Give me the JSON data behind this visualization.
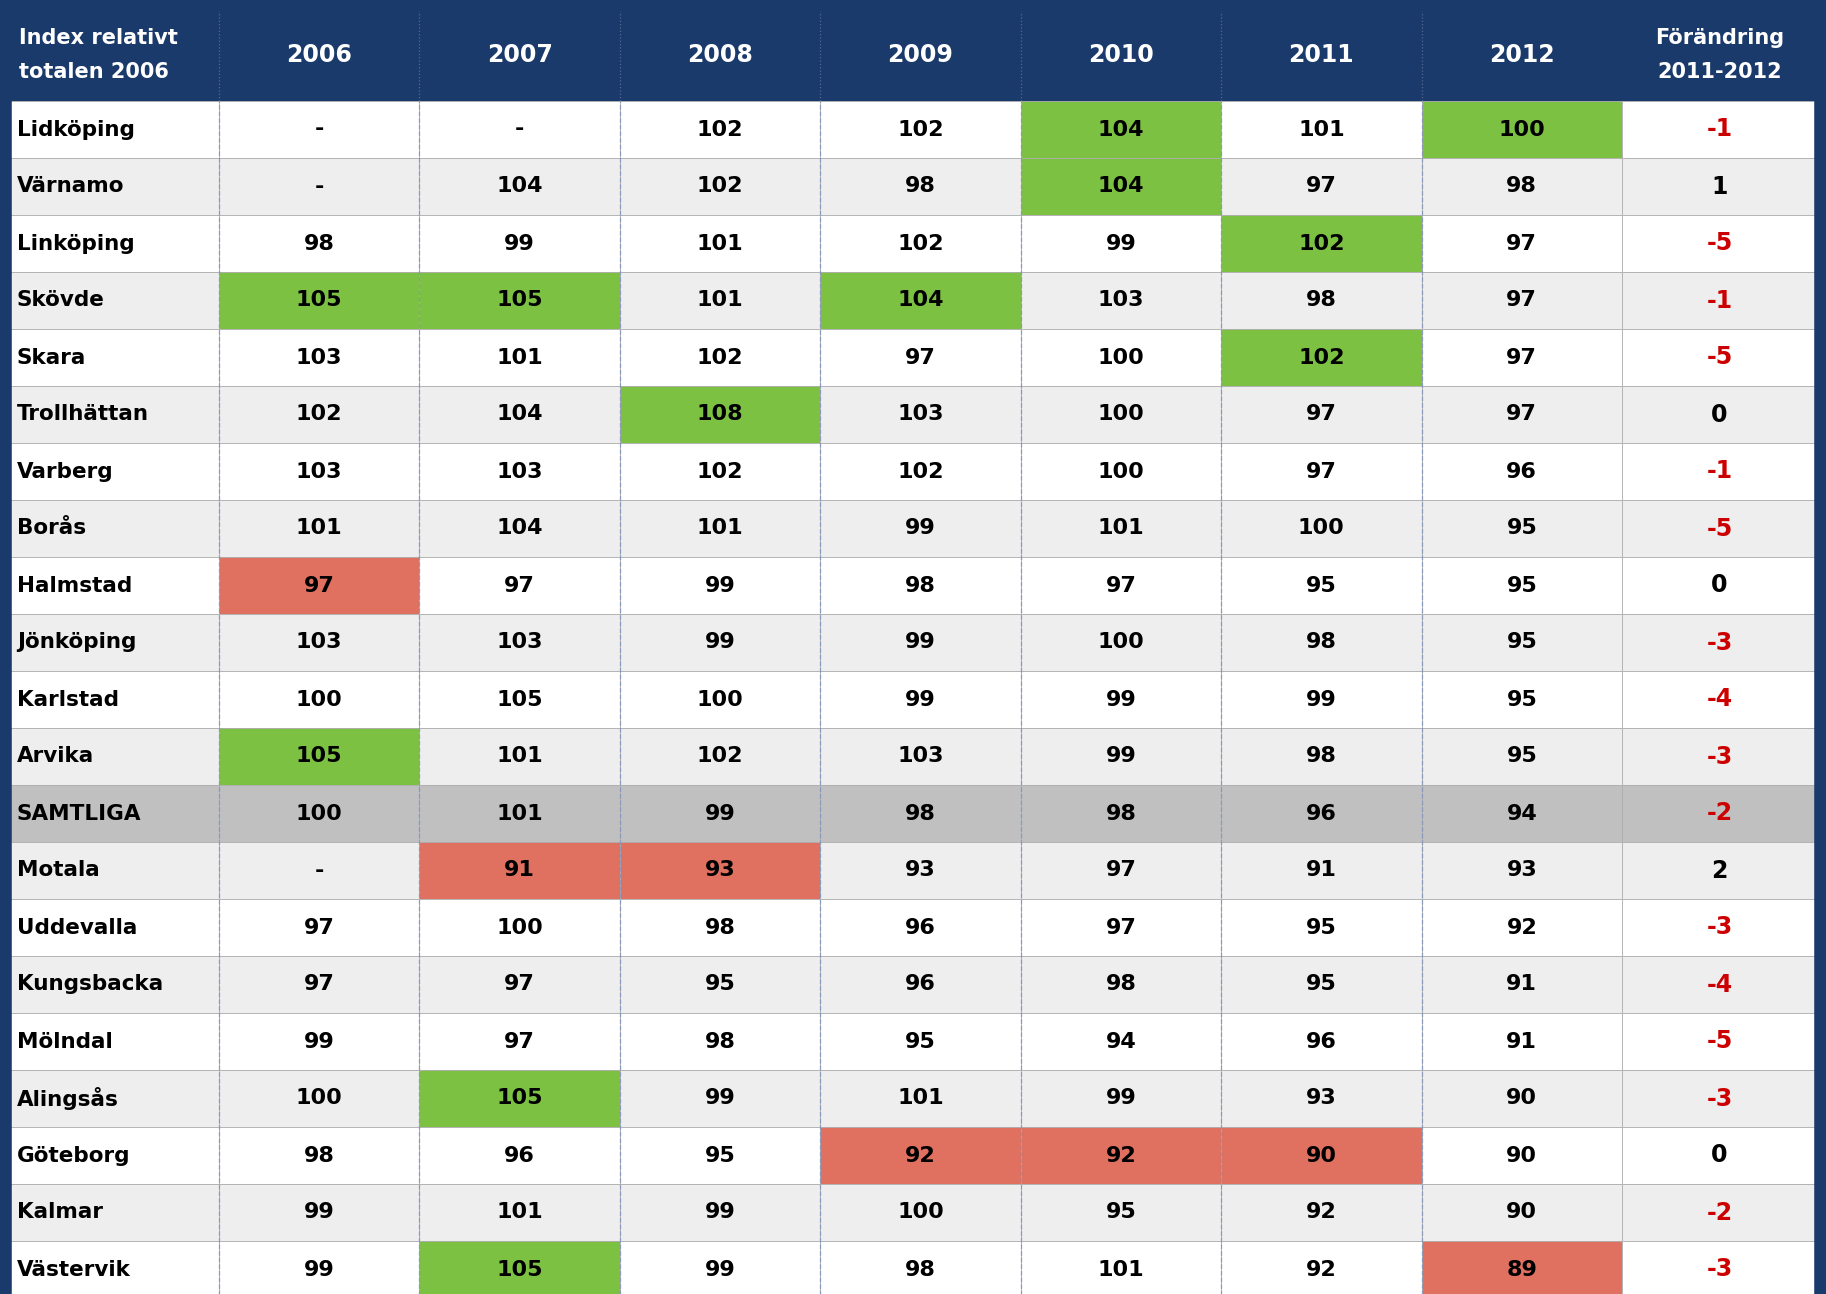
{
  "header_bg": "#1a3a6b",
  "header_text": "#ffffff",
  "year_cols": [
    "2006",
    "2007",
    "2008",
    "2009",
    "2010",
    "2011",
    "2012"
  ],
  "rows": [
    {
      "city": "Lidköping",
      "vals": [
        "-",
        "-",
        "102",
        "102",
        "104",
        "101",
        "100"
      ],
      "change": "-1",
      "change_color": "red"
    },
    {
      "city": "Värnamo",
      "vals": [
        "-",
        "104",
        "102",
        "98",
        "104",
        "97",
        "98"
      ],
      "change": "1",
      "change_color": "black"
    },
    {
      "city": "Linköping",
      "vals": [
        "98",
        "99",
        "101",
        "102",
        "99",
        "102",
        "97"
      ],
      "change": "-5",
      "change_color": "red"
    },
    {
      "city": "Skövde",
      "vals": [
        "105",
        "105",
        "101",
        "104",
        "103",
        "98",
        "97"
      ],
      "change": "-1",
      "change_color": "red"
    },
    {
      "city": "Skara",
      "vals": [
        "103",
        "101",
        "102",
        "97",
        "100",
        "102",
        "97"
      ],
      "change": "-5",
      "change_color": "red"
    },
    {
      "city": "Trollhättan",
      "vals": [
        "102",
        "104",
        "108",
        "103",
        "100",
        "97",
        "97"
      ],
      "change": "0",
      "change_color": "black"
    },
    {
      "city": "Varberg",
      "vals": [
        "103",
        "103",
        "102",
        "102",
        "100",
        "97",
        "96"
      ],
      "change": "-1",
      "change_color": "red"
    },
    {
      "city": "Borås",
      "vals": [
        "101",
        "104",
        "101",
        "99",
        "101",
        "100",
        "95"
      ],
      "change": "-5",
      "change_color": "red"
    },
    {
      "city": "Halmstad",
      "vals": [
        "97",
        "97",
        "99",
        "98",
        "97",
        "95",
        "95"
      ],
      "change": "0",
      "change_color": "black"
    },
    {
      "city": "Jönköping",
      "vals": [
        "103",
        "103",
        "99",
        "99",
        "100",
        "98",
        "95"
      ],
      "change": "-3",
      "change_color": "red"
    },
    {
      "city": "Karlstad",
      "vals": [
        "100",
        "105",
        "100",
        "99",
        "99",
        "99",
        "95"
      ],
      "change": "-4",
      "change_color": "red"
    },
    {
      "city": "Arvika",
      "vals": [
        "105",
        "101",
        "102",
        "103",
        "99",
        "98",
        "95"
      ],
      "change": "-3",
      "change_color": "red"
    },
    {
      "city": "SAMTLIGA",
      "vals": [
        "100",
        "101",
        "99",
        "98",
        "98",
        "96",
        "94"
      ],
      "change": "-2",
      "change_color": "red",
      "samtliga": true
    },
    {
      "city": "Motala",
      "vals": [
        "-",
        "91",
        "93",
        "93",
        "97",
        "91",
        "93"
      ],
      "change": "2",
      "change_color": "black"
    },
    {
      "city": "Uddevalla",
      "vals": [
        "97",
        "100",
        "98",
        "96",
        "97",
        "95",
        "92"
      ],
      "change": "-3",
      "change_color": "red"
    },
    {
      "city": "Kungsbacka",
      "vals": [
        "97",
        "97",
        "95",
        "96",
        "98",
        "95",
        "91"
      ],
      "change": "-4",
      "change_color": "red"
    },
    {
      "city": "Mölndal",
      "vals": [
        "99",
        "97",
        "98",
        "95",
        "94",
        "96",
        "91"
      ],
      "change": "-5",
      "change_color": "red"
    },
    {
      "city": "Alingsås",
      "vals": [
        "100",
        "105",
        "99",
        "101",
        "99",
        "93",
        "90"
      ],
      "change": "-3",
      "change_color": "red"
    },
    {
      "city": "Göteborg",
      "vals": [
        "98",
        "96",
        "95",
        "92",
        "92",
        "90",
        "90"
      ],
      "change": "0",
      "change_color": "black"
    },
    {
      "city": "Kalmar",
      "vals": [
        "99",
        "101",
        "99",
        "100",
        "95",
        "92",
        "90"
      ],
      "change": "-2",
      "change_color": "red"
    },
    {
      "city": "Västervik",
      "vals": [
        "99",
        "105",
        "99",
        "98",
        "101",
        "92",
        "89"
      ],
      "change": "-3",
      "change_color": "red"
    }
  ],
  "cell_highlights": [
    {
      "city": "Lidköping",
      "col": 4,
      "color": "green"
    },
    {
      "city": "Lidköping",
      "col": 6,
      "color": "green"
    },
    {
      "city": "Värnamo",
      "col": 4,
      "color": "green"
    },
    {
      "city": "Linköping",
      "col": 5,
      "color": "green"
    },
    {
      "city": "Skövde",
      "col": 0,
      "color": "green"
    },
    {
      "city": "Skövde",
      "col": 1,
      "color": "green"
    },
    {
      "city": "Skövde",
      "col": 3,
      "color": "green"
    },
    {
      "city": "Skara",
      "col": 5,
      "color": "green"
    },
    {
      "city": "Trollhättan",
      "col": 2,
      "color": "green"
    },
    {
      "city": "Halmstad",
      "col": 0,
      "color": "red"
    },
    {
      "city": "Arvika",
      "col": 0,
      "color": "green"
    },
    {
      "city": "Motala",
      "col": 1,
      "color": "red"
    },
    {
      "city": "Motala",
      "col": 2,
      "color": "red"
    },
    {
      "city": "Alingsås",
      "col": 1,
      "color": "green"
    },
    {
      "city": "Göteborg",
      "col": 3,
      "color": "red"
    },
    {
      "city": "Göteborg",
      "col": 4,
      "color": "red"
    },
    {
      "city": "Göteborg",
      "col": 5,
      "color": "red"
    },
    {
      "city": "Västervik",
      "col": 1,
      "color": "green"
    },
    {
      "city": "Västervik",
      "col": 6,
      "color": "red"
    }
  ],
  "green_color": "#7dc142",
  "red_color": "#e07060",
  "samtliga_bg": "#c0c0c0",
  "border_color": "#b0b0b0",
  "dash_color": "#8899bb"
}
